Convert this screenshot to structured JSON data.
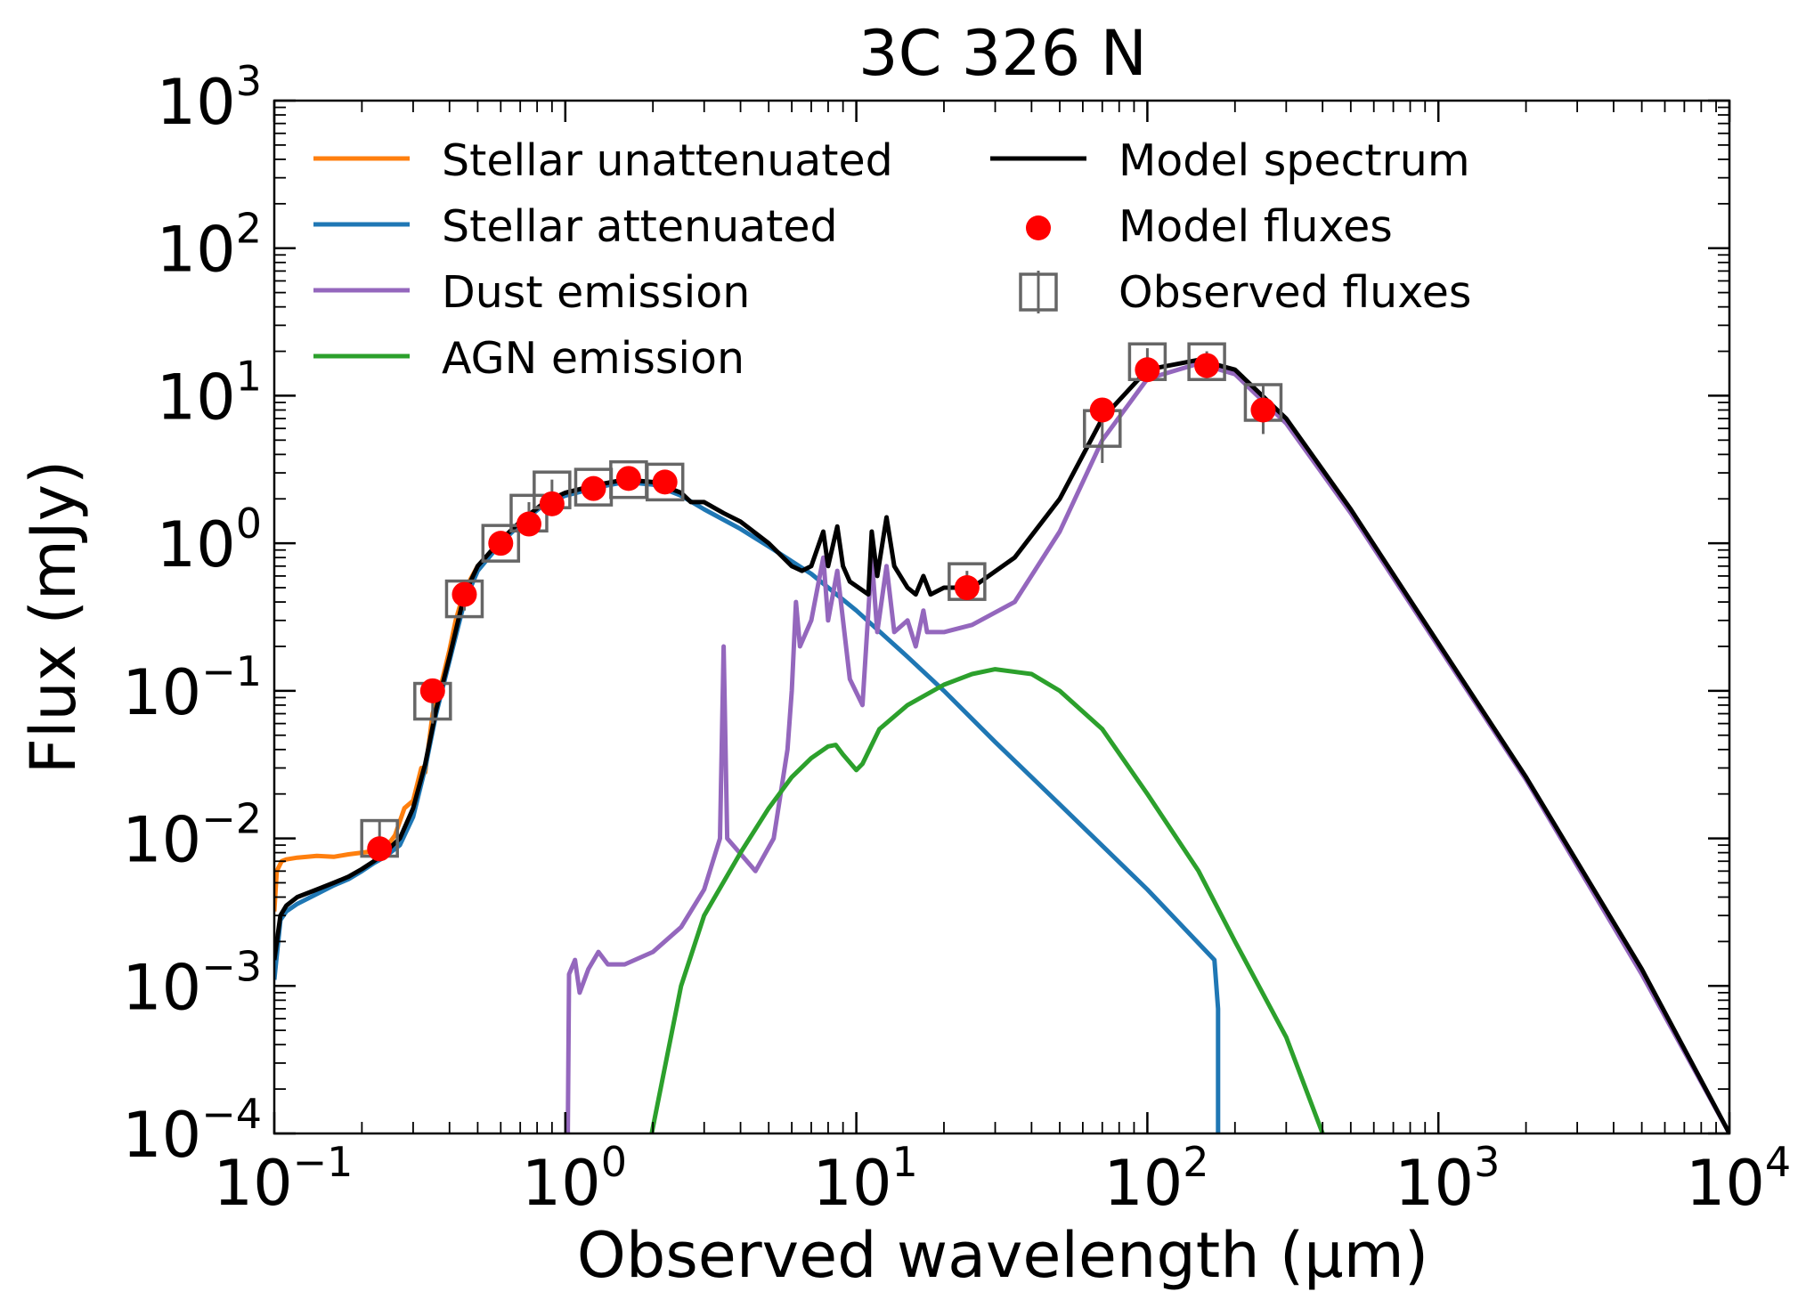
{
  "chart_data": {
    "type": "line",
    "title": "3C 326 N",
    "xlabel": "Observed wavelength (µm)",
    "ylabel": "Flux (mJy)",
    "xscale": "log",
    "yscale": "log",
    "xlim": [
      0.1,
      10000
    ],
    "ylim": [
      0.0001,
      1000
    ],
    "x_ticks": [
      {
        "value": 0.1,
        "base": "10",
        "exp": "−1"
      },
      {
        "value": 1,
        "base": "10",
        "exp": "0"
      },
      {
        "value": 10,
        "base": "10",
        "exp": "1"
      },
      {
        "value": 100,
        "base": "10",
        "exp": "2"
      },
      {
        "value": 1000,
        "base": "10",
        "exp": "3"
      },
      {
        "value": 10000,
        "base": "10",
        "exp": "4"
      }
    ],
    "y_ticks": [
      {
        "value": 0.0001,
        "base": "10",
        "exp": "−4"
      },
      {
        "value": 0.001,
        "base": "10",
        "exp": "−3"
      },
      {
        "value": 0.01,
        "base": "10",
        "exp": "−2"
      },
      {
        "value": 0.1,
        "base": "10",
        "exp": "−1"
      },
      {
        "value": 1,
        "base": "10",
        "exp": "0"
      },
      {
        "value": 10,
        "base": "10",
        "exp": "1"
      },
      {
        "value": 100,
        "base": "10",
        "exp": "2"
      },
      {
        "value": 1000,
        "base": "10",
        "exp": "3"
      }
    ],
    "grid": false,
    "legend": "top, two columns",
    "series": [
      {
        "name": "Stellar unattenuated",
        "kind": "line",
        "color": "#ff7f0e",
        "points": [
          [
            0.1,
            0.0032
          ],
          [
            0.102,
            0.006
          ],
          [
            0.106,
            0.007
          ],
          [
            0.11,
            0.0072
          ],
          [
            0.12,
            0.0074
          ],
          [
            0.14,
            0.0076
          ],
          [
            0.16,
            0.0075
          ],
          [
            0.18,
            0.0078
          ],
          [
            0.2,
            0.008
          ],
          [
            0.22,
            0.0082
          ],
          [
            0.24,
            0.0085
          ],
          [
            0.26,
            0.0105
          ],
          [
            0.28,
            0.016
          ],
          [
            0.3,
            0.018
          ],
          [
            0.32,
            0.03
          ],
          [
            0.33,
            0.028
          ],
          [
            0.35,
            0.07
          ],
          [
            0.37,
            0.1
          ],
          [
            0.4,
            0.19
          ],
          [
            0.42,
            0.3
          ],
          [
            0.45,
            0.48
          ],
          [
            0.5,
            0.7
          ],
          [
            0.55,
            0.85
          ],
          [
            0.6,
            1.0
          ]
        ]
      },
      {
        "name": "Stellar attenuated",
        "kind": "line",
        "color": "#1f77b4",
        "points": [
          [
            0.1,
            0.0011
          ],
          [
            0.105,
            0.0028
          ],
          [
            0.11,
            0.0032
          ],
          [
            0.12,
            0.0036
          ],
          [
            0.14,
            0.0042
          ],
          [
            0.16,
            0.0048
          ],
          [
            0.18,
            0.0053
          ],
          [
            0.2,
            0.006
          ],
          [
            0.22,
            0.0068
          ],
          [
            0.24,
            0.0075
          ],
          [
            0.27,
            0.009
          ],
          [
            0.3,
            0.014
          ],
          [
            0.33,
            0.03
          ],
          [
            0.36,
            0.07
          ],
          [
            0.4,
            0.16
          ],
          [
            0.45,
            0.4
          ],
          [
            0.5,
            0.65
          ],
          [
            0.6,
            1.0
          ],
          [
            0.7,
            1.35
          ],
          [
            0.85,
            1.85
          ],
          [
            1.0,
            2.1
          ],
          [
            1.3,
            2.4
          ],
          [
            1.6,
            2.6
          ],
          [
            2.0,
            2.5
          ],
          [
            2.5,
            2.1
          ],
          [
            3.0,
            1.7
          ],
          [
            4.0,
            1.25
          ],
          [
            5.0,
            0.95
          ],
          [
            7.0,
            0.62
          ],
          [
            10,
            0.35
          ],
          [
            15,
            0.17
          ],
          [
            20,
            0.1
          ],
          [
            30,
            0.045
          ],
          [
            50,
            0.017
          ],
          [
            100,
            0.0045
          ],
          [
            170,
            0.0015
          ],
          [
            175,
            0.0007
          ],
          [
            175,
            0.0001
          ]
        ]
      },
      {
        "name": "Dust emission",
        "kind": "line",
        "color": "#9467bd",
        "points": [
          [
            1.02,
            0.0001
          ],
          [
            1.03,
            0.0012
          ],
          [
            1.08,
            0.0015
          ],
          [
            1.12,
            0.0009
          ],
          [
            1.2,
            0.0013
          ],
          [
            1.3,
            0.0017
          ],
          [
            1.4,
            0.0014
          ],
          [
            1.6,
            0.0014
          ],
          [
            2.0,
            0.0017
          ],
          [
            2.5,
            0.0025
          ],
          [
            3.0,
            0.0045
          ],
          [
            3.4,
            0.01
          ],
          [
            3.5,
            0.2
          ],
          [
            3.6,
            0.01
          ],
          [
            4.5,
            0.006
          ],
          [
            5.2,
            0.01
          ],
          [
            5.8,
            0.04
          ],
          [
            6.0,
            0.1
          ],
          [
            6.2,
            0.4
          ],
          [
            6.4,
            0.2
          ],
          [
            7.0,
            0.3
          ],
          [
            7.7,
            0.8
          ],
          [
            8.0,
            0.3
          ],
          [
            8.6,
            0.65
          ],
          [
            9.5,
            0.12
          ],
          [
            10.5,
            0.08
          ],
          [
            11.3,
            0.8
          ],
          [
            11.8,
            0.25
          ],
          [
            12.7,
            0.7
          ],
          [
            13.5,
            0.25
          ],
          [
            15,
            0.3
          ],
          [
            16,
            0.2
          ],
          [
            17,
            0.35
          ],
          [
            17.5,
            0.25
          ],
          [
            20,
            0.25
          ],
          [
            25,
            0.28
          ],
          [
            35,
            0.4
          ],
          [
            50,
            1.2
          ],
          [
            70,
            5.0
          ],
          [
            100,
            13.0
          ],
          [
            150,
            16.5
          ],
          [
            200,
            14.0
          ],
          [
            300,
            6.5
          ],
          [
            500,
            1.6
          ],
          [
            1000,
            0.2
          ],
          [
            2000,
            0.025
          ],
          [
            5000,
            0.0012
          ],
          [
            10000,
            0.0001
          ]
        ]
      },
      {
        "name": "AGN emission",
        "kind": "line",
        "color": "#2ca02c",
        "points": [
          [
            1.98,
            0.0001
          ],
          [
            2.5,
            0.001
          ],
          [
            3.0,
            0.003
          ],
          [
            4.0,
            0.008
          ],
          [
            5.0,
            0.016
          ],
          [
            6.0,
            0.026
          ],
          [
            7.0,
            0.035
          ],
          [
            8.0,
            0.042
          ],
          [
            8.5,
            0.043
          ],
          [
            9.0,
            0.037
          ],
          [
            10,
            0.029
          ],
          [
            10.5,
            0.032
          ],
          [
            12,
            0.055
          ],
          [
            15,
            0.08
          ],
          [
            20,
            0.11
          ],
          [
            25,
            0.13
          ],
          [
            30,
            0.14
          ],
          [
            40,
            0.13
          ],
          [
            50,
            0.1
          ],
          [
            70,
            0.055
          ],
          [
            100,
            0.02
          ],
          [
            150,
            0.006
          ],
          [
            200,
            0.002
          ],
          [
            300,
            0.00045
          ],
          [
            400,
            0.0001
          ]
        ]
      },
      {
        "name": "Model spectrum",
        "kind": "line",
        "color": "#000000",
        "points": [
          [
            0.1,
            0.0015
          ],
          [
            0.105,
            0.003
          ],
          [
            0.11,
            0.0035
          ],
          [
            0.12,
            0.004
          ],
          [
            0.14,
            0.0045
          ],
          [
            0.16,
            0.005
          ],
          [
            0.18,
            0.0055
          ],
          [
            0.2,
            0.0062
          ],
          [
            0.22,
            0.007
          ],
          [
            0.24,
            0.008
          ],
          [
            0.27,
            0.01
          ],
          [
            0.3,
            0.016
          ],
          [
            0.33,
            0.032
          ],
          [
            0.36,
            0.075
          ],
          [
            0.4,
            0.17
          ],
          [
            0.45,
            0.45
          ],
          [
            0.5,
            0.7
          ],
          [
            0.6,
            1.05
          ],
          [
            0.7,
            1.4
          ],
          [
            0.85,
            1.9
          ],
          [
            1.0,
            2.2
          ],
          [
            1.3,
            2.5
          ],
          [
            1.6,
            2.7
          ],
          [
            2.0,
            2.6
          ],
          [
            2.5,
            2.2
          ],
          [
            2.7,
            1.9
          ],
          [
            3.0,
            1.9
          ],
          [
            3.5,
            1.6
          ],
          [
            4.0,
            1.4
          ],
          [
            5.0,
            1.0
          ],
          [
            6.0,
            0.7
          ],
          [
            6.5,
            0.65
          ],
          [
            7.0,
            0.7
          ],
          [
            7.7,
            1.2
          ],
          [
            8.0,
            0.7
          ],
          [
            8.6,
            1.3
          ],
          [
            9.0,
            0.7
          ],
          [
            9.5,
            0.55
          ],
          [
            11,
            0.45
          ],
          [
            11.3,
            1.2
          ],
          [
            11.8,
            0.6
          ],
          [
            12.7,
            1.5
          ],
          [
            13.5,
            0.7
          ],
          [
            15,
            0.5
          ],
          [
            16,
            0.45
          ],
          [
            17,
            0.6
          ],
          [
            18,
            0.45
          ],
          [
            20,
            0.5
          ],
          [
            25,
            0.5
          ],
          [
            35,
            0.8
          ],
          [
            50,
            2.0
          ],
          [
            70,
            7.0
          ],
          [
            100,
            15.0
          ],
          [
            150,
            17.5
          ],
          [
            200,
            15.0
          ],
          [
            300,
            7.0
          ],
          [
            500,
            1.7
          ],
          [
            1000,
            0.21
          ],
          [
            2000,
            0.026
          ],
          [
            5000,
            0.0013
          ],
          [
            10000,
            0.0001
          ]
        ]
      },
      {
        "name": "Model fluxes",
        "kind": "scatter",
        "color": "#ff0000",
        "points": [
          [
            0.23,
            0.0085
          ],
          [
            0.35,
            0.1
          ],
          [
            0.45,
            0.45
          ],
          [
            0.6,
            1.0
          ],
          [
            0.75,
            1.35
          ],
          [
            0.9,
            1.85
          ],
          [
            1.25,
            2.35
          ],
          [
            1.65,
            2.75
          ],
          [
            2.2,
            2.6
          ],
          [
            24,
            0.5
          ],
          [
            70,
            8.0
          ],
          [
            100,
            15.0
          ],
          [
            160,
            16.0
          ],
          [
            250,
            8.0
          ]
        ]
      },
      {
        "name": "Observed fluxes",
        "kind": "errorbar",
        "color": "#666666",
        "points": [
          [
            0.23,
            0.01,
            0.007,
            0.013
          ],
          [
            0.35,
            0.085,
            0.06,
            0.11
          ],
          [
            0.45,
            0.42,
            0.35,
            0.5
          ],
          [
            0.6,
            1.0,
            0.85,
            1.2
          ],
          [
            0.75,
            1.6,
            1.35,
            1.9
          ],
          [
            0.9,
            2.3,
            1.9,
            2.7
          ],
          [
            1.25,
            2.4,
            2.0,
            2.8
          ],
          [
            1.65,
            2.7,
            2.3,
            3.2
          ],
          [
            2.2,
            2.6,
            2.2,
            3.0
          ],
          [
            24,
            0.55,
            0.45,
            0.65
          ],
          [
            70,
            6.0,
            3.5,
            9.0
          ],
          [
            100,
            17.0,
            13.0,
            21.0
          ],
          [
            160,
            17.0,
            14.0,
            20.0
          ],
          [
            250,
            9.0,
            5.5,
            12.0
          ]
        ]
      }
    ]
  }
}
